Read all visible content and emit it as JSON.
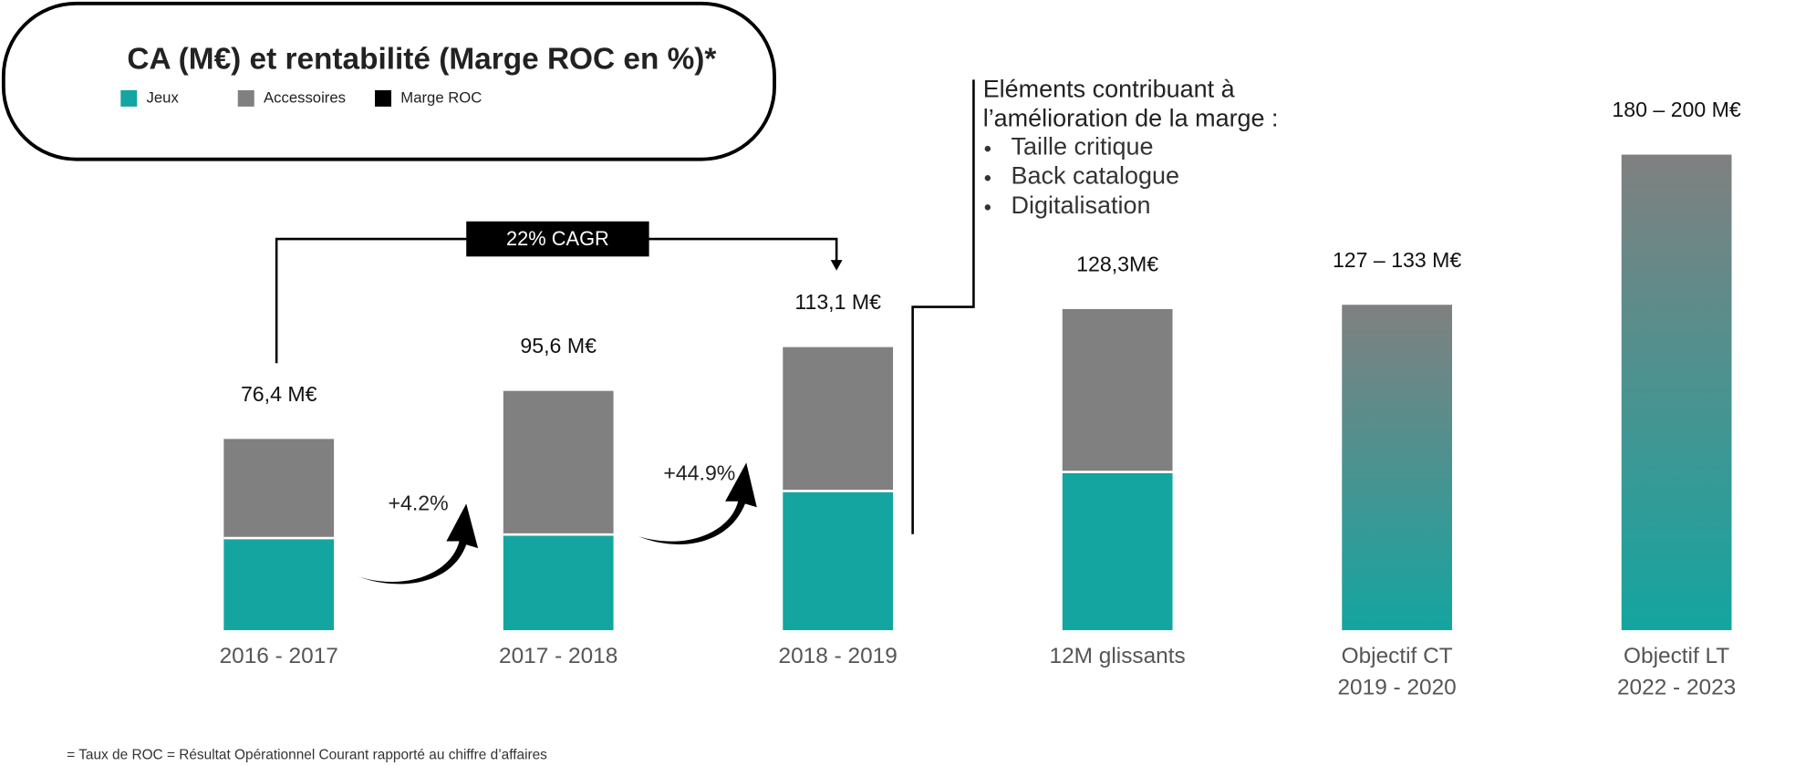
{
  "chart_data": {
    "type": "bar",
    "title": "CA (M€) et rentabilité (Marge ROC en %)*",
    "categories": [
      "2016 - 2017",
      "2017 - 2018",
      "2018 - 2019",
      "12M glissants",
      "Objectif CT\n2019 - 2020",
      "Objectif LT\n2022 - 2023"
    ],
    "series": [
      {
        "name": "Jeux",
        "color": "#14a5a0",
        "values": [
          36.8,
          38.2,
          55.6,
          63.2,
          null,
          null
        ]
      },
      {
        "name": "Accessoires",
        "color": "#808080",
        "values": [
          39.6,
          57.4,
          57.5,
          65.1,
          null,
          null
        ]
      },
      {
        "name": "Marge ROC",
        "color": "#000000",
        "values": [
          null,
          null,
          null,
          null,
          null,
          null
        ]
      }
    ],
    "totals": [
      76.4,
      95.6,
      113.1,
      128.3,
      130,
      190
    ],
    "total_labels": [
      "76,4 M€",
      "95,6 M€",
      "113,1 M€",
      "128,3M€",
      "127 – 133 M€",
      "180 – 200 M€"
    ],
    "growth_labels": [
      "+4.2%",
      "+44.9%"
    ],
    "cagr_label": "22% CAGR",
    "notes_title": "Eléments contribuant à\nl’amélioration de la marge :",
    "notes": [
      "Taille critique",
      "Back catalogue",
      "Digitalisation"
    ],
    "footnote": "= Taux de ROC = Résultat Opérationnel Courant rapporté au chiffre d’affaires"
  }
}
